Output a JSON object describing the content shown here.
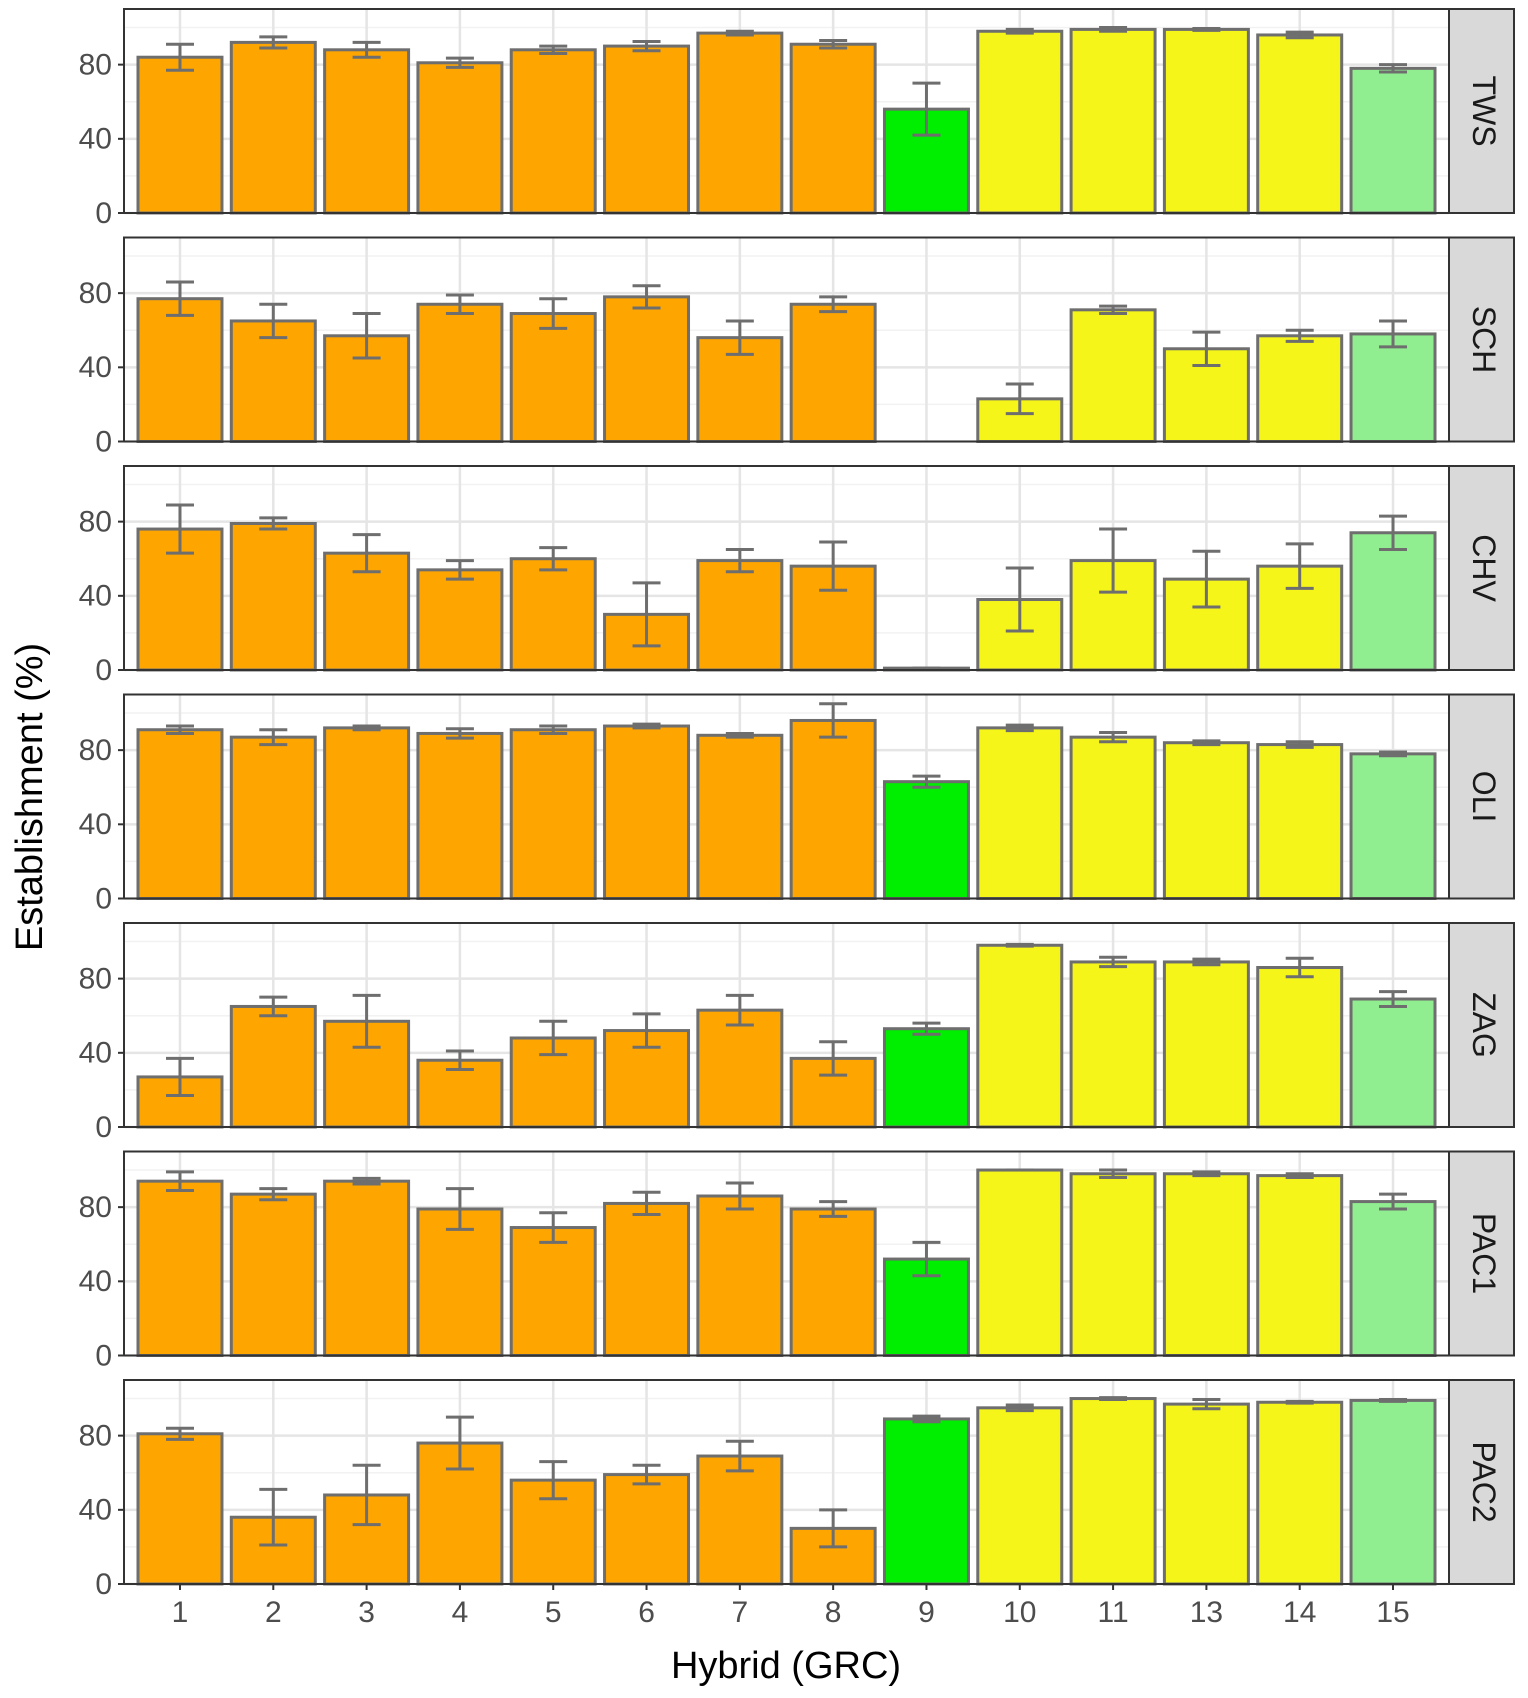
{
  "chart_data": {
    "type": "bar",
    "x_label": "Hybrid (GRC)",
    "y_label": "Establishment (%)",
    "categories": [
      "1",
      "2",
      "3",
      "4",
      "5",
      "6",
      "7",
      "8",
      "9",
      "10",
      "11",
      "13",
      "14",
      "15"
    ],
    "colors": [
      "#ffa500",
      "#ffa500",
      "#ffa500",
      "#ffa500",
      "#ffa500",
      "#ffa500",
      "#ffa500",
      "#ffa500",
      "#00ee00",
      "#f5f51a",
      "#f5f51a",
      "#f5f51a",
      "#f5f51a",
      "#90ee90"
    ],
    "outline_color": "#6e6e6e",
    "error_color": "#6e6e6e",
    "ylim": [
      0,
      110
    ],
    "yticks": [
      0,
      40,
      80
    ],
    "y_minor_gridlines": [
      20,
      60,
      100
    ],
    "grid": true,
    "facets": [
      {
        "name": "TWS",
        "values": [
          84,
          92,
          88,
          81,
          88,
          90,
          97,
          91,
          56,
          98,
          99,
          99,
          96,
          78
        ],
        "errors": [
          7,
          3,
          4,
          2.5,
          2,
          2.5,
          1,
          2,
          14,
          1,
          1,
          0.5,
          1.5,
          2
        ]
      },
      {
        "name": "SCH",
        "values": [
          77,
          65,
          57,
          74,
          69,
          78,
          56,
          74,
          null,
          23,
          71,
          50,
          57,
          58
        ],
        "errors": [
          9,
          9,
          12,
          5,
          8,
          6,
          9,
          4,
          null,
          8,
          2,
          9,
          3,
          7
        ]
      },
      {
        "name": "CHV",
        "values": [
          76,
          79,
          63,
          54,
          60,
          30,
          59,
          56,
          1,
          38,
          59,
          49,
          56,
          74
        ],
        "errors": [
          13,
          3,
          10,
          5,
          6,
          17,
          6,
          13,
          0,
          17,
          17,
          15,
          12,
          9
        ]
      },
      {
        "name": "OLI",
        "values": [
          91,
          87,
          92,
          89,
          91,
          93,
          88,
          96,
          63,
          92,
          87,
          84,
          83,
          78
        ],
        "errors": [
          2,
          4,
          1,
          2.5,
          2,
          1,
          1,
          9,
          3,
          1.5,
          2.5,
          1,
          1.5,
          1
        ]
      },
      {
        "name": "ZAG",
        "values": [
          27,
          65,
          57,
          36,
          48,
          52,
          63,
          37,
          53,
          98,
          89,
          89,
          86,
          69
        ],
        "errors": [
          10,
          5,
          14,
          5,
          9,
          9,
          8,
          9,
          3,
          0.5,
          2.5,
          1.5,
          5,
          4
        ]
      },
      {
        "name": "PAC1",
        "values": [
          94,
          87,
          94,
          79,
          69,
          82,
          86,
          79,
          52,
          100,
          98,
          98,
          97,
          83
        ],
        "errors": [
          5,
          3,
          1.5,
          11,
          8,
          6,
          7,
          4,
          9,
          0,
          2,
          1,
          1,
          4
        ]
      },
      {
        "name": "PAC2",
        "values": [
          81,
          36,
          48,
          76,
          56,
          59,
          69,
          30,
          89,
          95,
          100,
          97,
          98,
          99
        ],
        "errors": [
          3,
          15,
          16,
          14,
          10,
          5,
          8,
          10,
          1.5,
          1.5,
          0.5,
          2.5,
          0.5,
          0.5
        ]
      }
    ]
  }
}
